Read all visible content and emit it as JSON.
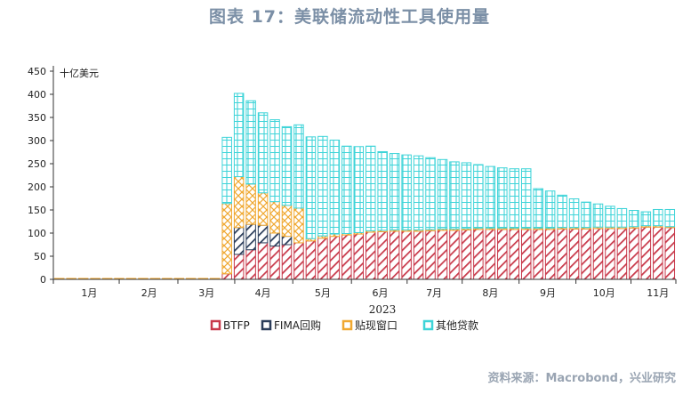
{
  "title": "图表 17：美联储流动性工具使用量",
  "source": "资料来源：Macrobond，兴业研究",
  "colors": {
    "btfp": "#c8394a",
    "fima": "#2b3d5a",
    "discount": "#f0a830",
    "other": "#3ed4d8",
    "title": "#7b8fa6"
  },
  "chart_data": {
    "type": "bar",
    "stacked": true,
    "unit_label": "十亿美元",
    "xlabel": "2023",
    "ylim": [
      0,
      450
    ],
    "yticks": [
      0,
      50,
      100,
      150,
      200,
      250,
      300,
      350,
      400,
      450
    ],
    "x_ticks": [
      "1月",
      "2月",
      "3月",
      "4月",
      "5月",
      "6月",
      "7月",
      "8月",
      "9月",
      "10月",
      "11月"
    ],
    "x_tick_weeks": [
      3,
      8,
      12.8,
      17.5,
      22.5,
      27.3,
      31.8,
      36.5,
      41.3,
      46,
      50.5
    ],
    "week_count": 52,
    "legend": [
      "BTFP",
      "FIMA回购",
      "贴现窗口",
      "其他贷款"
    ],
    "series": [
      {
        "key": "btfp",
        "name": "BTFP",
        "values": [
          0,
          0,
          0,
          0,
          0,
          0,
          0,
          0,
          0,
          0,
          0,
          0,
          0,
          0,
          12,
          54,
          64,
          79,
          72,
          75,
          79,
          83,
          89,
          93,
          96,
          98,
          102,
          103,
          104,
          104,
          104,
          105,
          106,
          106,
          107,
          108,
          108,
          108,
          108,
          108,
          108,
          108,
          109,
          109,
          109,
          110,
          110,
          110,
          111,
          113,
          113,
          112
        ]
      },
      {
        "key": "fima",
        "name": "FIMA回购",
        "values": [
          0,
          0,
          0,
          0,
          0,
          0,
          0,
          0,
          0,
          0,
          0,
          0,
          0,
          0,
          0,
          58,
          55,
          38,
          28,
          18,
          0,
          0,
          0,
          0,
          0,
          0,
          0,
          0,
          0,
          0,
          0,
          0,
          0,
          0,
          0,
          0,
          0,
          0,
          0,
          0,
          0,
          0,
          0,
          0,
          0,
          0,
          0,
          0,
          0,
          0,
          0,
          0
        ]
      },
      {
        "key": "discount",
        "name": "贴现窗口",
        "values": [
          2,
          2,
          2,
          2,
          2,
          2,
          2,
          2,
          2,
          2,
          2,
          2,
          2,
          2,
          152,
          110,
          87,
          70,
          68,
          67,
          75,
          5,
          5,
          5,
          3,
          3,
          3,
          3,
          3,
          3,
          3,
          3,
          3,
          3,
          3,
          3,
          3,
          3,
          3,
          3,
          3,
          3,
          3,
          3,
          3,
          3,
          3,
          3,
          3,
          3,
          3,
          2
        ]
      },
      {
        "key": "other",
        "name": "其他贷款",
        "values": [
          0,
          0,
          0,
          0,
          0,
          0,
          0,
          0,
          0,
          0,
          0,
          0,
          0,
          0,
          143,
          180,
          180,
          173,
          177,
          170,
          180,
          220,
          215,
          203,
          189,
          186,
          183,
          170,
          165,
          162,
          160,
          155,
          150,
          145,
          142,
          137,
          133,
          130,
          128,
          128,
          85,
          80,
          70,
          62,
          55,
          50,
          45,
          40,
          35,
          30,
          35,
          37
        ]
      }
    ]
  }
}
